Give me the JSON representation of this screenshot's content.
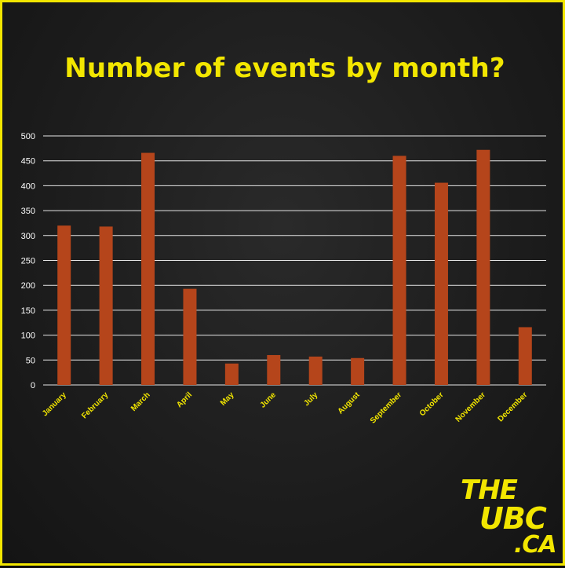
{
  "colors": {
    "accent": "#f2e600",
    "bar": "#b5451b",
    "grid": "#e6e6e6",
    "background": "#1c1c1c"
  },
  "logo": {
    "line1": "THE",
    "line2": "UBC",
    "line3": ".CA"
  },
  "chart_data": {
    "type": "bar",
    "title": "Number of events by month?",
    "xlabel": "",
    "ylabel": "",
    "ylim": [
      0,
      500
    ],
    "yticks": [
      0,
      50,
      100,
      150,
      200,
      250,
      300,
      350,
      400,
      450,
      500
    ],
    "grid": true,
    "legend": "none",
    "categories": [
      "January",
      "February",
      "March",
      "April",
      "May",
      "June",
      "July",
      "August",
      "September",
      "October",
      "November",
      "December"
    ],
    "values": [
      320,
      318,
      466,
      193,
      43,
      60,
      57,
      54,
      460,
      406,
      472,
      116
    ]
  }
}
